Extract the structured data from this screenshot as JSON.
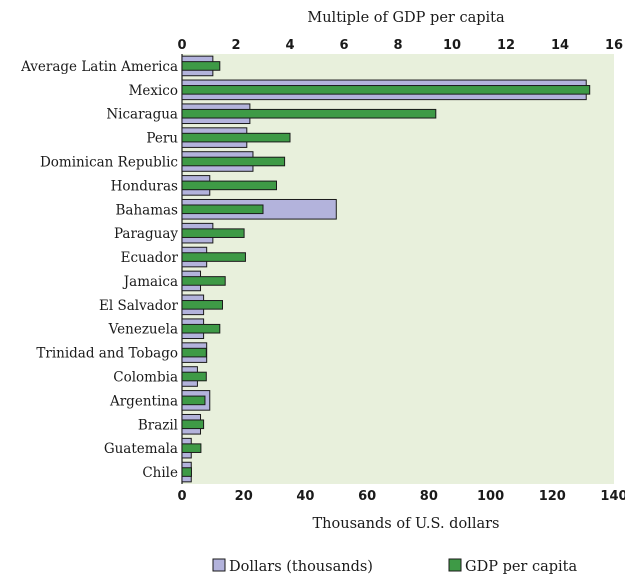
{
  "chart_data": {
    "type": "bar",
    "orientation": "horizontal",
    "categories": [
      "Average Latin America",
      "Mexico",
      "Nicaragua",
      "Peru",
      "Dominican Republic",
      "Honduras",
      "Bahamas",
      "Paraguay",
      "Ecuador",
      "Jamaica",
      "El Salvador",
      "Venezuela",
      "Trinidad and Tobago",
      "Colombia",
      "Argentina",
      "Brazil",
      "Guatemala",
      "Chile"
    ],
    "series": [
      {
        "name": "Dollars (thousands)",
        "axis": "bottom",
        "color": "#b3b3dc",
        "values": [
          10,
          131,
          22,
          21,
          23,
          9,
          50,
          10,
          8,
          6,
          7,
          7,
          8,
          5,
          9,
          6,
          3,
          3
        ]
      },
      {
        "name": "GDP per capita",
        "axis": "top",
        "color": "#3e9a46",
        "values": [
          1.4,
          15.1,
          9.4,
          4,
          3.8,
          3.5,
          3,
          2.3,
          2.35,
          1.6,
          1.5,
          1.4,
          0.9,
          0.9,
          0.85,
          0.8,
          0.7,
          0.35
        ]
      }
    ],
    "bottom_axis": {
      "label": "Thousands of U.S. dollars",
      "range": [
        0,
        140
      ],
      "ticks": [
        0,
        20,
        40,
        60,
        80,
        100,
        120,
        140
      ]
    },
    "top_axis": {
      "label": "Multiple of GDP per capita",
      "range": [
        0,
        16
      ],
      "ticks": [
        0,
        2,
        4,
        6,
        8,
        10,
        12,
        14,
        16
      ]
    },
    "plot_background": "#e8f0dc",
    "grid": false,
    "legend_position": "bottom"
  }
}
